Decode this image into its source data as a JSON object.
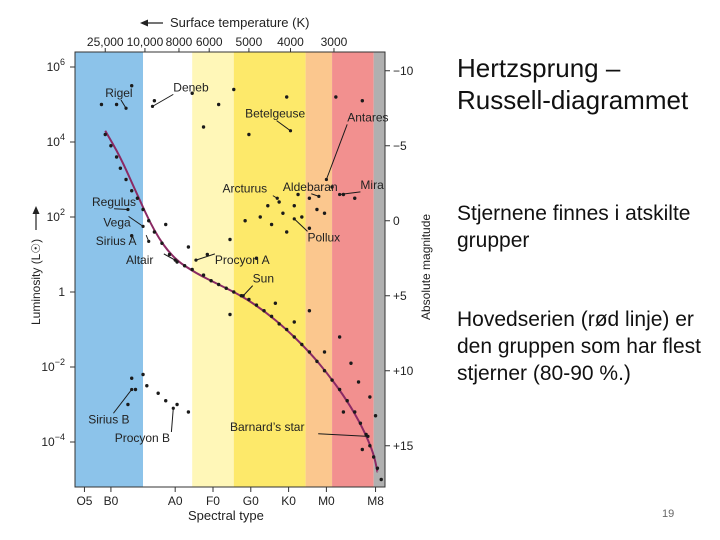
{
  "slide": {
    "title": "Hertzsprung – Russell-diagrammet",
    "paragraph1": "Stjernene finnes i atskilte grupper",
    "paragraph2": "Hovedserien (rød linje) er den gruppen som har flest stjerner (80-90 %.)",
    "page_number": "19"
  },
  "chart_data": {
    "type": "scatter",
    "title": "",
    "top_axis": {
      "label": "Surface temperature (K)",
      "ticks": [
        "25,000",
        "10,000",
        "8000",
        "6000",
        "5000",
        "4000",
        "3000"
      ]
    },
    "x_axis": {
      "label": "Spectral type",
      "ticks": [
        "O5",
        "B0",
        "A0",
        "F0",
        "G0",
        "K0",
        "M0",
        "M8"
      ],
      "range": [
        -0.6,
        7.6
      ]
    },
    "y_axis": {
      "label": "Luminosity (L☉)",
      "scale": "log",
      "range": [
        -5.2,
        6.4
      ],
      "ticks": [
        {
          "value": 6,
          "base": "10",
          "exp": "6"
        },
        {
          "value": 4,
          "base": "10",
          "exp": "4"
        },
        {
          "value": 2,
          "base": "10",
          "exp": "2"
        },
        {
          "value": 0,
          "base": "1",
          "exp": ""
        },
        {
          "value": -2,
          "base": "10",
          "exp": "−2"
        },
        {
          "value": -4,
          "base": "10",
          "exp": "−4"
        }
      ]
    },
    "right_axis": {
      "label": "Absolute magnitude",
      "ticks": [
        {
          "value": 5.9,
          "text": "−10"
        },
        {
          "value": 3.9,
          "text": "−5"
        },
        {
          "value": 1.9,
          "text": "0"
        },
        {
          "value": -0.1,
          "text": "+5"
        },
        {
          "value": -2.1,
          "text": "+10"
        },
        {
          "value": -4.1,
          "text": "+15"
        }
      ]
    },
    "color_bands": [
      {
        "class": "O-B",
        "from": -0.6,
        "to": 1.2,
        "color": "#8cc3ea"
      },
      {
        "class": "A",
        "from": 1.2,
        "to": 2.5,
        "color": "#ffffff"
      },
      {
        "class": "F",
        "from": 2.5,
        "to": 3.6,
        "color": "#fff7b8"
      },
      {
        "class": "G",
        "from": 3.6,
        "to": 5.5,
        "color": "#fde96a"
      },
      {
        "class": "K",
        "from": 5.5,
        "to": 6.2,
        "color": "#fbc78e"
      },
      {
        "class": "M",
        "from": 6.2,
        "to": 7.3,
        "color": "#f2908f"
      },
      {
        "class": "late-M",
        "from": 7.3,
        "to": 7.6,
        "color": "#b0b0b0"
      }
    ],
    "main_sequence_curve": {
      "color": "#8b2a64",
      "points": [
        [
          0.2,
          4.3
        ],
        [
          0.6,
          3.6
        ],
        [
          1.0,
          2.7
        ],
        [
          1.5,
          1.6
        ],
        [
          2.0,
          0.9
        ],
        [
          2.6,
          0.5
        ],
        [
          3.2,
          0.2
        ],
        [
          3.8,
          -0.1
        ],
        [
          4.4,
          -0.5
        ],
        [
          5.0,
          -1.0
        ],
        [
          5.6,
          -1.6
        ],
        [
          6.1,
          -2.2
        ],
        [
          6.6,
          -2.9
        ],
        [
          7.0,
          -3.6
        ],
        [
          7.3,
          -4.3
        ],
        [
          7.4,
          -4.8
        ]
      ]
    },
    "stars": [
      [
        0.2,
        4.2
      ],
      [
        0.35,
        3.9
      ],
      [
        0.5,
        3.6
      ],
      [
        0.6,
        3.3
      ],
      [
        0.75,
        3.0
      ],
      [
        0.9,
        2.7
      ],
      [
        1.05,
        2.5
      ],
      [
        1.2,
        2.2
      ],
      [
        1.35,
        1.9
      ],
      [
        1.5,
        1.6
      ],
      [
        1.7,
        1.3
      ],
      [
        1.9,
        1.0
      ],
      [
        2.1,
        0.8
      ],
      [
        2.3,
        0.7
      ],
      [
        2.5,
        0.6
      ],
      [
        2.8,
        0.45
      ],
      [
        3.0,
        0.3
      ],
      [
        3.2,
        0.2
      ],
      [
        3.4,
        0.1
      ],
      [
        3.6,
        0.0
      ],
      [
        3.8,
        -0.1
      ],
      [
        4.0,
        -0.2
      ],
      [
        4.2,
        -0.35
      ],
      [
        4.4,
        -0.5
      ],
      [
        4.6,
        -0.65
      ],
      [
        4.8,
        -0.85
      ],
      [
        5.0,
        -1.0
      ],
      [
        5.2,
        -1.2
      ],
      [
        5.4,
        -1.4
      ],
      [
        5.6,
        -1.6
      ],
      [
        5.8,
        -1.85
      ],
      [
        6.0,
        -2.1
      ],
      [
        6.2,
        -2.35
      ],
      [
        6.4,
        -2.6
      ],
      [
        6.6,
        -2.9
      ],
      [
        6.8,
        -3.2
      ],
      [
        6.95,
        -3.5
      ],
      [
        7.1,
        -3.8
      ],
      [
        7.2,
        -4.1
      ],
      [
        7.3,
        -4.4
      ],
      [
        7.4,
        -4.7
      ],
      [
        7.5,
        -5.0
      ],
      [
        0.9,
        1.5
      ],
      [
        1.8,
        1.8
      ],
      [
        2.4,
        1.2
      ],
      [
        2.9,
        1.0
      ],
      [
        3.5,
        1.4
      ],
      [
        4.2,
        0.9
      ],
      [
        3.5,
        -0.6
      ],
      [
        4.7,
        -0.3
      ],
      [
        5.2,
        -0.8
      ],
      [
        5.6,
        -0.5
      ],
      [
        6.4,
        -1.2
      ],
      [
        6.0,
        -1.6
      ],
      [
        6.7,
        -1.9
      ],
      [
        6.9,
        -2.4
      ],
      [
        7.2,
        -2.8
      ],
      [
        6.5,
        -3.2
      ],
      [
        7.0,
        -4.2
      ],
      [
        7.35,
        -3.3
      ],
      [
        3.9,
        1.9
      ],
      [
        4.3,
        2.0
      ],
      [
        4.6,
        1.8
      ],
      [
        4.9,
        2.1
      ],
      [
        5.2,
        2.3
      ],
      [
        5.4,
        2.0
      ],
      [
        5.6,
        1.7
      ],
      [
        5.8,
        2.2
      ],
      [
        5.3,
        2.6
      ],
      [
        4.8,
        2.4
      ],
      [
        5.6,
        2.5
      ],
      [
        6.2,
        2.8
      ],
      [
        6.5,
        2.6
      ],
      [
        6.8,
        2.5
      ],
      [
        5.0,
        1.6
      ],
      [
        4.5,
        2.3
      ],
      [
        6.0,
        2.1
      ],
      [
        0.1,
        5.0
      ],
      [
        0.5,
        5.0
      ],
      [
        1.5,
        5.1
      ],
      [
        2.5,
        5.3
      ],
      [
        3.6,
        5.4
      ],
      [
        5.0,
        5.2
      ],
      [
        6.3,
        5.2
      ],
      [
        7.0,
        5.1
      ],
      [
        2.8,
        4.4
      ],
      [
        4.0,
        4.2
      ],
      [
        3.2,
        5.0
      ],
      [
        0.9,
        5.5
      ],
      [
        0.9,
        -2.3
      ],
      [
        1.0,
        -2.6
      ],
      [
        1.3,
        -2.5
      ],
      [
        1.6,
        -2.7
      ],
      [
        1.8,
        -2.9
      ],
      [
        2.1,
        -3.0
      ],
      [
        2.4,
        -3.2
      ],
      [
        0.8,
        -3.0
      ],
      [
        1.2,
        -2.2
      ]
    ],
    "labels": [
      {
        "text": "Rigel",
        "tx": 0.2,
        "ty": 5.2,
        "px": 0.75,
        "py": 4.9
      },
      {
        "text": "Deneb",
        "tx": 2.0,
        "ty": 5.35,
        "px": 1.45,
        "py": 4.95
      },
      {
        "text": "Betelgeuse",
        "tx": 3.9,
        "ty": 4.65,
        "px": 5.1,
        "py": 4.3
      },
      {
        "text": "Antares",
        "tx": 6.6,
        "ty": 4.55,
        "px": 6.05,
        "py": 3.0
      },
      {
        "text": "Mira",
        "tx": 6.95,
        "ty": 2.75,
        "px": 6.4,
        "py": 2.6
      },
      {
        "text": "Arcturus",
        "tx": 3.3,
        "ty": 2.65,
        "px": 4.75,
        "py": 2.5
      },
      {
        "text": "Aldebaran",
        "tx": 4.9,
        "ty": 2.7,
        "px": 5.85,
        "py": 2.55
      },
      {
        "text": "Pollux",
        "tx": 5.55,
        "ty": 1.35,
        "px": 5.2,
        "py": 1.95
      },
      {
        "text": "Regulus",
        "tx": -0.15,
        "ty": 2.3,
        "px": 0.8,
        "py": 2.2
      },
      {
        "text": "Vega",
        "tx": 0.15,
        "ty": 1.75,
        "px": 1.2,
        "py": 1.75
      },
      {
        "text": "Sirius A",
        "tx": -0.05,
        "ty": 1.25,
        "px": 1.35,
        "py": 1.35
      },
      {
        "text": "Altair",
        "tx": 0.75,
        "ty": 0.75,
        "px": 2.05,
        "py": 0.85
      },
      {
        "text": "Procyon A",
        "tx": 3.1,
        "ty": 0.75,
        "px": 2.6,
        "py": 0.85
      },
      {
        "text": "Sun",
        "tx": 4.1,
        "ty": 0.25,
        "px": 3.85,
        "py": -0.1
      },
      {
        "text": "Sirius B",
        "tx": -0.25,
        "ty": -3.5,
        "px": 0.9,
        "py": -2.6
      },
      {
        "text": "Procyon B",
        "tx": 0.45,
        "ty": -4.0,
        "px": 2.0,
        "py": -3.1
      },
      {
        "text": "Barnard’s star",
        "tx": 3.5,
        "ty": -3.7,
        "px": 7.15,
        "py": -3.85
      }
    ]
  }
}
